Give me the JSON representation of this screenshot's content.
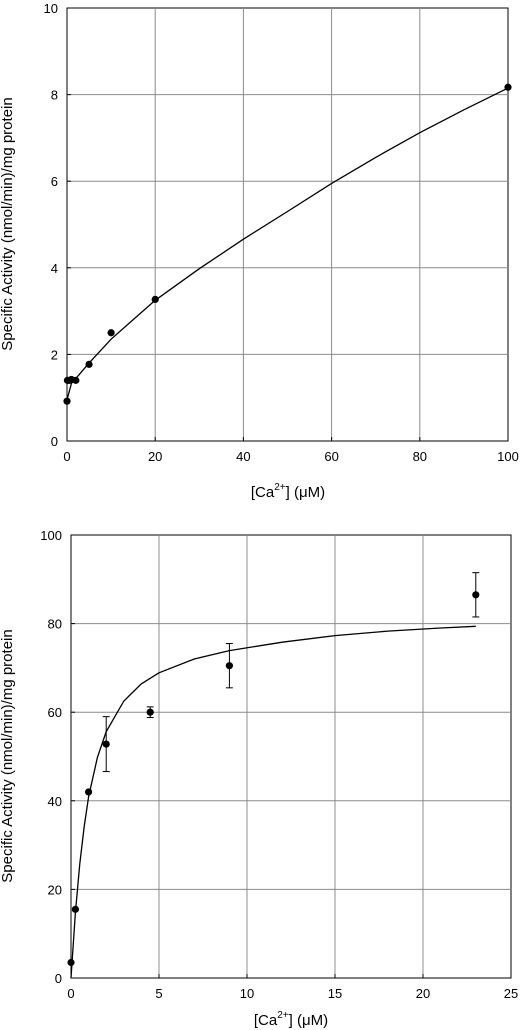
{
  "chart_data": [
    {
      "type": "scatter",
      "title": "",
      "xlabel": {
        "pre": "[Ca",
        "sup": "2+",
        "post": "]  (μM)"
      },
      "ylabel": "Specific Activity (nmol/min)/mg protein",
      "xlim": [
        0,
        100
      ],
      "ylim": [
        0,
        10
      ],
      "xticks": [
        0,
        20,
        40,
        60,
        80,
        100
      ],
      "yticks": [
        0,
        2,
        4,
        6,
        8,
        10
      ],
      "grid": true,
      "series": [
        {
          "points": [
            {
              "x": 0,
              "y": 0.92
            },
            {
              "x": 0.1,
              "y": 1.4
            },
            {
              "x": 0.5,
              "y": 1.4
            },
            {
              "x": 1,
              "y": 1.42
            },
            {
              "x": 2,
              "y": 1.4
            },
            {
              "x": 5,
              "y": 1.77
            },
            {
              "x": 10,
              "y": 2.5
            },
            {
              "x": 20,
              "y": 3.27
            },
            {
              "x": 100,
              "y": 8.17
            }
          ],
          "fit": [
            {
              "x": 0,
              "y": 0.95
            },
            {
              "x": 1,
              "y": 1.33
            },
            {
              "x": 2,
              "y": 1.44
            },
            {
              "x": 5,
              "y": 1.8
            },
            {
              "x": 10,
              "y": 2.35
            },
            {
              "x": 20,
              "y": 3.25
            },
            {
              "x": 30,
              "y": 3.98
            },
            {
              "x": 40,
              "y": 4.66
            },
            {
              "x": 50,
              "y": 5.3
            },
            {
              "x": 60,
              "y": 5.95
            },
            {
              "x": 70,
              "y": 6.55
            },
            {
              "x": 80,
              "y": 7.12
            },
            {
              "x": 90,
              "y": 7.65
            },
            {
              "x": 100,
              "y": 8.15
            }
          ]
        }
      ]
    },
    {
      "type": "scatter",
      "title": "",
      "xlabel": {
        "pre": "[Ca",
        "sup": "2+",
        "post": "]  (μM)"
      },
      "ylabel": "Specific Activity (nmol/min)/mg protein",
      "xlim": [
        0,
        25
      ],
      "ylim": [
        0,
        100
      ],
      "xticks": [
        0,
        5,
        10,
        15,
        20,
        25
      ],
      "yticks": [
        0,
        20,
        40,
        60,
        80,
        100
      ],
      "grid": true,
      "series": [
        {
          "points": [
            {
              "x": 0,
              "y": 3.5
            },
            {
              "x": 0.25,
              "y": 15.5
            },
            {
              "x": 1,
              "y": 42
            },
            {
              "x": 2,
              "y": 52.8,
              "err": 6.2
            },
            {
              "x": 4.5,
              "y": 60,
              "err": 1.2
            },
            {
              "x": 9,
              "y": 70.5,
              "err": 5
            },
            {
              "x": 23,
              "y": 86.5,
              "err": 5
            }
          ],
          "fit": [
            {
              "x": 0,
              "y": 0
            },
            {
              "x": 0.25,
              "y": 14.8
            },
            {
              "x": 0.5,
              "y": 25.8
            },
            {
              "x": 0.75,
              "y": 34.2
            },
            {
              "x": 1,
              "y": 40.9
            },
            {
              "x": 1.5,
              "y": 49.8
            },
            {
              "x": 2,
              "y": 55.6
            },
            {
              "x": 3,
              "y": 62.5
            },
            {
              "x": 4,
              "y": 66.4
            },
            {
              "x": 5,
              "y": 68.9
            },
            {
              "x": 7,
              "y": 72
            },
            {
              "x": 9,
              "y": 73.9
            },
            {
              "x": 12,
              "y": 75.8
            },
            {
              "x": 15,
              "y": 77.3
            },
            {
              "x": 18,
              "y": 78.3
            },
            {
              "x": 21,
              "y": 79
            },
            {
              "x": 23,
              "y": 79.4
            }
          ]
        }
      ]
    }
  ]
}
